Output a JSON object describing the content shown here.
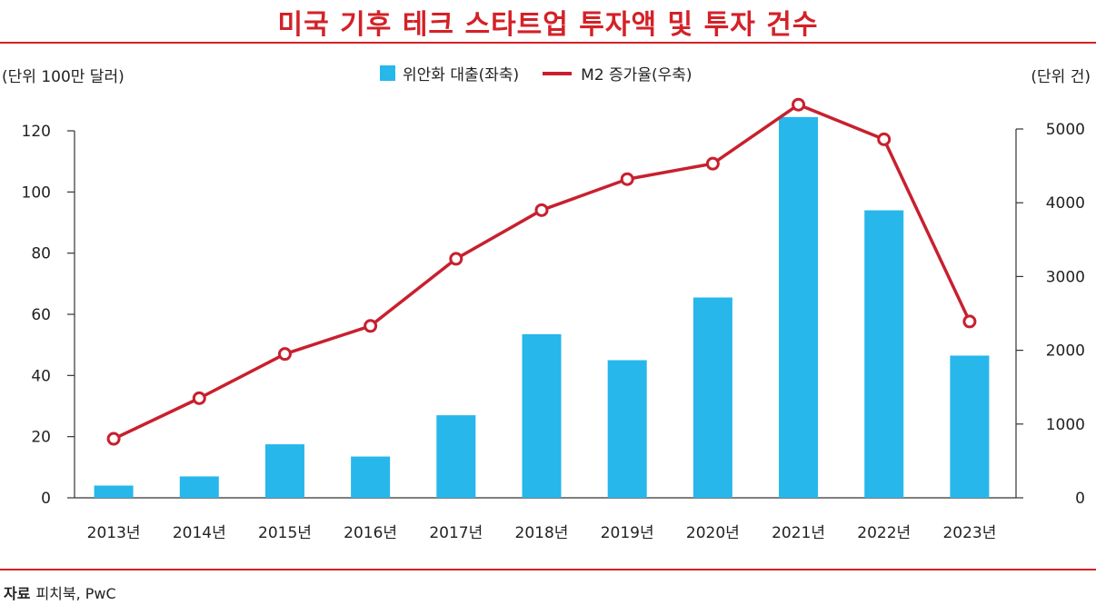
{
  "title": "미국 기후 테크 스타트업 투자액 및 투자 건수",
  "left_unit": "(단위 100만 달러)",
  "right_unit": "(단위 건)",
  "legend": {
    "bar": "위안화 대출(좌축)",
    "line": "M2 증가율(우축)"
  },
  "source": {
    "label": "자료",
    "text": "피치북, PwC"
  },
  "colors": {
    "bar": "#27b7ea",
    "line": "#c8202e",
    "title": "#d42127"
  },
  "chart_data": {
    "type": "bar+line",
    "categories": [
      "2013년",
      "2014년",
      "2015년",
      "2016년",
      "2017년",
      "2018년",
      "2019년",
      "2020년",
      "2021년",
      "2022년",
      "2023년"
    ],
    "series": [
      {
        "name": "위안화 대출(좌축)",
        "axis": "left",
        "kind": "bar",
        "values": [
          4,
          7,
          17.5,
          13.5,
          27,
          53.5,
          45,
          65.5,
          124.5,
          94,
          46.5
        ]
      },
      {
        "name": "M2 증가율(우축)",
        "axis": "right",
        "kind": "line",
        "values": [
          800,
          1350,
          1950,
          2330,
          3240,
          3900,
          4320,
          4530,
          5330,
          4860,
          2390
        ]
      }
    ],
    "left_axis": {
      "ylim": [
        0,
        120
      ],
      "ticks": [
        "0",
        "20",
        "40",
        "60",
        "80",
        "100",
        "120"
      ]
    },
    "right_axis": {
      "ylim": [
        0,
        5000
      ],
      "ticks": [
        "0",
        "1000",
        "2000",
        "3000",
        "4000",
        "5000"
      ]
    }
  }
}
